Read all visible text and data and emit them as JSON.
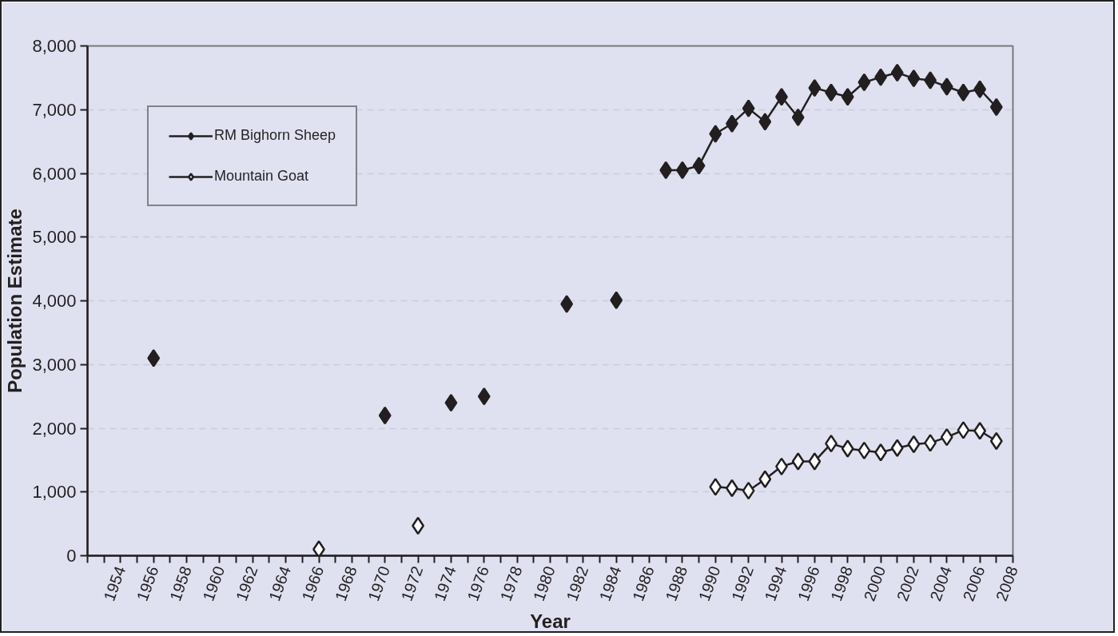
{
  "chart_data": {
    "type": "line",
    "xlabel": "Year",
    "ylabel": "Population Estimate",
    "x": [
      1956,
      1957,
      1958,
      1959,
      1960,
      1961,
      1962,
      1963,
      1964,
      1965,
      1966,
      1967,
      1968,
      1969,
      1970,
      1971,
      1972,
      1973,
      1974,
      1975,
      1976,
      1977,
      1978,
      1979,
      1980,
      1981,
      1982,
      1983,
      1984,
      1985,
      1986,
      1987,
      1988,
      1989,
      1990,
      1991,
      1992,
      1993,
      1994,
      1995,
      1996,
      1997,
      1998,
      1999,
      2000,
      2001,
      2002,
      2003,
      2004,
      2005,
      2006,
      2007
    ],
    "series": [
      {
        "name": "RM Bighorn Sheep",
        "color": "#231f20",
        "values": [
          3100,
          null,
          null,
          null,
          null,
          null,
          null,
          null,
          null,
          null,
          null,
          null,
          null,
          null,
          2200,
          null,
          null,
          null,
          2400,
          null,
          2500,
          null,
          null,
          null,
          null,
          3950,
          null,
          null,
          4010,
          null,
          null,
          6050,
          6050,
          6120,
          6620,
          6780,
          7020,
          6810,
          7200,
          6880,
          7340,
          7270,
          7200,
          7430,
          7510,
          7580,
          7490,
          7460,
          7360,
          7270,
          7320,
          7040
        ]
      },
      {
        "name": "Mountain Goat",
        "color": "#231f20",
        "values": [
          null,
          null,
          null,
          null,
          null,
          null,
          null,
          null,
          null,
          null,
          100,
          null,
          null,
          null,
          null,
          null,
          470,
          null,
          null,
          null,
          null,
          null,
          null,
          null,
          null,
          null,
          null,
          null,
          null,
          null,
          null,
          null,
          null,
          null,
          1080,
          1060,
          1020,
          1200,
          1400,
          1480,
          1480,
          1760,
          1680,
          1650,
          1620,
          1690,
          1750,
          1770,
          1860,
          1970,
          1960,
          1800
        ]
      }
    ],
    "marker": "diamond",
    "line_style": "solid",
    "grid": "y",
    "legend": "top left",
    "xlim": [
      1952,
      2008
    ],
    "xticks": [
      {
        "value": 1952,
        "label": null
      },
      {
        "value": 1953,
        "label": null
      },
      1954,
      {
        "value": 1955,
        "label": null
      },
      1956,
      {
        "value": 1957,
        "label": null
      },
      1958,
      {
        "value": 1959,
        "label": null
      },
      1960,
      {
        "value": 1961,
        "label": null
      },
      1962,
      {
        "value": 1963,
        "label": null
      },
      1964,
      {
        "value": 1965,
        "label": null
      },
      1966,
      {
        "value": 1967,
        "label": null
      },
      1968,
      {
        "value": 1969,
        "label": null
      },
      1970,
      {
        "value": 1971,
        "label": null
      },
      1972,
      {
        "value": 1973,
        "label": null
      },
      1974,
      {
        "value": 1975,
        "label": null
      },
      1976,
      {
        "value": 1977,
        "label": null
      },
      1978,
      {
        "value": 1979,
        "label": null
      },
      1980,
      {
        "value": 1981,
        "label": null
      },
      1982,
      {
        "value": 1983,
        "label": null
      },
      1984,
      {
        "value": 1985,
        "label": null
      },
      1986,
      {
        "value": 1987,
        "label": null
      },
      1988,
      {
        "value": 1989,
        "label": null
      },
      1990,
      {
        "value": 1991,
        "label": null
      },
      1992,
      {
        "value": 1993,
        "label": null
      },
      1994,
      {
        "value": 1995,
        "label": null
      },
      1996,
      {
        "value": 1997,
        "label": null
      },
      1998,
      {
        "value": 1999,
        "label": null
      },
      2000,
      {
        "value": 2001,
        "label": null
      },
      2002,
      {
        "value": 2003,
        "label": null
      },
      2004,
      {
        "value": 2005,
        "label": null
      },
      2006,
      {
        "value": 2007,
        "label": null
      },
      2008
    ],
    "ylim": [
      0,
      8000
    ],
    "yticks": [
      0,
      {
        "value": 1000,
        "label": "1,000"
      },
      {
        "value": 2000,
        "label": "2,000"
      },
      {
        "value": 3000,
        "label": "3,000"
      },
      {
        "value": 4000,
        "label": "4,000"
      },
      {
        "value": 5000,
        "label": "5,000"
      },
      {
        "value": 6000,
        "label": "6,000"
      },
      {
        "value": 7000,
        "label": "7,000"
      },
      {
        "value": 8000,
        "label": "8,000"
      }
    ]
  }
}
